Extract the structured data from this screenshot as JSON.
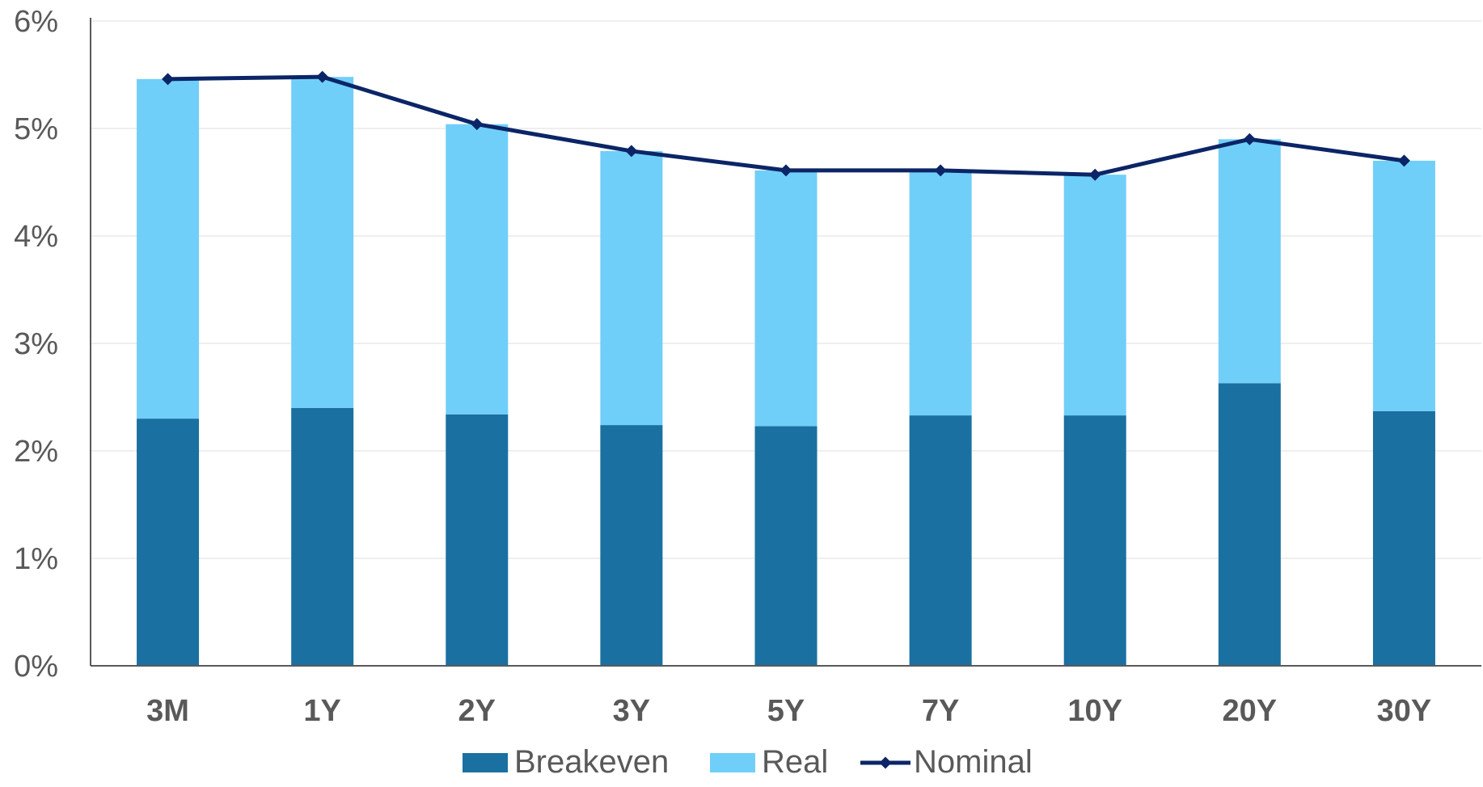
{
  "chart_data": {
    "type": "bar",
    "stacked": true,
    "categories": [
      "3M",
      "1Y",
      "2Y",
      "3Y",
      "5Y",
      "7Y",
      "10Y",
      "20Y",
      "30Y"
    ],
    "series": [
      {
        "name": "Breakeven",
        "kind": "bar",
        "color": "#1a70a0",
        "values": [
          2.3,
          2.4,
          2.34,
          2.24,
          2.23,
          2.33,
          2.33,
          2.63,
          2.37
        ]
      },
      {
        "name": "Real",
        "kind": "bar",
        "color": "#70cff8",
        "values": [
          3.16,
          3.08,
          2.7,
          2.55,
          2.38,
          2.28,
          2.24,
          2.27,
          2.33
        ]
      },
      {
        "name": "Nominal",
        "kind": "line",
        "color": "#0b2566",
        "marker": "diamond",
        "values": [
          5.46,
          5.48,
          5.04,
          4.79,
          4.61,
          4.61,
          4.57,
          4.9,
          4.7
        ]
      }
    ],
    "y_ticks": [
      "0%",
      "1%",
      "2%",
      "3%",
      "4%",
      "5%",
      "6%"
    ],
    "ylim": [
      0,
      6
    ],
    "grid": true,
    "legend_position": "bottom"
  }
}
